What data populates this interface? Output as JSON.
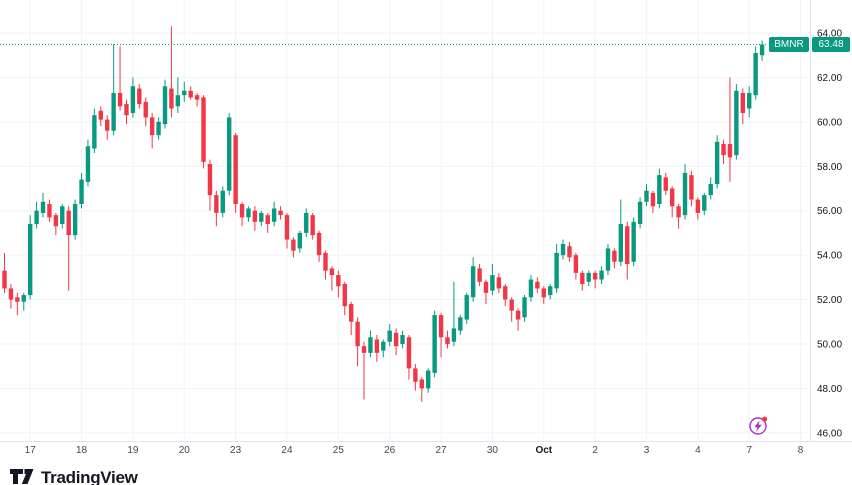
{
  "price_badge": {
    "symbol": "BMNR",
    "price": "63.48"
  },
  "watermark": {
    "text": "TradingView"
  },
  "chart_data": {
    "type": "candlestick",
    "symbol": "BMNR",
    "last_price": 63.48,
    "colors": {
      "up": "#089981",
      "down": "#f23645",
      "grid": "#f0f3fa",
      "axis_border": "#e0e3eb",
      "text": "#131722",
      "text_soft": "#434651",
      "price_line": "#089981",
      "event_icon": "#a832c8",
      "event_dot": "#f23645"
    },
    "y_axis": {
      "min": 46,
      "max": 64,
      "step": 2,
      "labels": [
        "64.00",
        "62.00",
        "60.00",
        "58.00",
        "56.00",
        "54.00",
        "52.00",
        "50.00",
        "48.00",
        "46.00"
      ]
    },
    "x_axis": {
      "labels": [
        {
          "text": "17",
          "i": 4
        },
        {
          "text": "18",
          "i": 12
        },
        {
          "text": "19",
          "i": 20
        },
        {
          "text": "20",
          "i": 28
        },
        {
          "text": "23",
          "i": 36
        },
        {
          "text": "24",
          "i": 44
        },
        {
          "text": "25",
          "i": 52
        },
        {
          "text": "26",
          "i": 60
        },
        {
          "text": "27",
          "i": 68
        },
        {
          "text": "30",
          "i": 76
        },
        {
          "text": "Oct",
          "i": 84,
          "bold": true
        },
        {
          "text": "2",
          "i": 92
        },
        {
          "text": "3",
          "i": 100
        },
        {
          "text": "4",
          "i": 108
        },
        {
          "text": "7",
          "i": 116
        },
        {
          "text": "8",
          "i": 124
        }
      ]
    },
    "candles": [
      [
        53.3,
        54.1,
        52.3,
        52.5
      ],
      [
        52.5,
        52.7,
        51.6,
        52.0
      ],
      [
        52.1,
        52.3,
        51.3,
        51.9
      ],
      [
        51.9,
        52.3,
        51.5,
        52.2
      ],
      [
        52.2,
        55.8,
        52.0,
        55.4
      ],
      [
        55.4,
        56.4,
        55.2,
        56.0
      ],
      [
        55.9,
        56.8,
        55.7,
        56.4
      ],
      [
        56.3,
        56.5,
        55.5,
        55.7
      ],
      [
        55.8,
        55.9,
        54.9,
        55.3
      ],
      [
        55.4,
        56.3,
        55.2,
        56.2
      ],
      [
        56.0,
        56.2,
        52.4,
        54.9
      ],
      [
        54.9,
        56.5,
        54.7,
        56.3
      ],
      [
        56.3,
        57.7,
        56.1,
        57.4
      ],
      [
        57.3,
        59.2,
        57.1,
        58.9
      ],
      [
        58.8,
        60.6,
        58.6,
        60.3
      ],
      [
        60.5,
        60.7,
        59.8,
        60.1
      ],
      [
        60.1,
        60.3,
        59.2,
        59.6
      ],
      [
        59.6,
        63.5,
        59.4,
        61.3
      ],
      [
        61.3,
        63.4,
        60.5,
        60.7
      ],
      [
        60.8,
        61.0,
        59.9,
        60.3
      ],
      [
        60.4,
        62.0,
        60.2,
        61.6
      ],
      [
        61.5,
        61.7,
        60.6,
        60.8
      ],
      [
        60.9,
        61.1,
        59.8,
        60.2
      ],
      [
        60.2,
        60.4,
        58.8,
        59.4
      ],
      [
        59.4,
        60.2,
        59.2,
        60.0
      ],
      [
        59.9,
        61.9,
        59.7,
        61.6
      ],
      [
        61.5,
        64.3,
        60.2,
        60.6
      ],
      [
        60.7,
        62.0,
        60.4,
        61.2
      ],
      [
        61.2,
        61.8,
        60.9,
        61.4
      ],
      [
        61.4,
        61.6,
        61.0,
        61.1
      ],
      [
        61.2,
        61.3,
        60.7,
        61.0
      ],
      [
        61.1,
        61.2,
        57.9,
        58.2
      ],
      [
        58.1,
        58.3,
        56.0,
        56.7
      ],
      [
        56.7,
        56.9,
        55.3,
        55.9
      ],
      [
        55.9,
        57.1,
        55.7,
        56.9
      ],
      [
        56.9,
        60.4,
        56.7,
        60.2
      ],
      [
        59.4,
        59.5,
        55.9,
        56.3
      ],
      [
        56.3,
        56.4,
        55.3,
        55.7
      ],
      [
        55.7,
        56.2,
        55.5,
        56.1
      ],
      [
        56.0,
        56.2,
        55.1,
        55.5
      ],
      [
        55.5,
        56.0,
        55.3,
        55.9
      ],
      [
        55.8,
        55.9,
        55.0,
        55.4
      ],
      [
        55.5,
        56.4,
        55.3,
        56.1
      ],
      [
        56.0,
        56.2,
        55.6,
        55.8
      ],
      [
        55.8,
        55.9,
        54.3,
        54.7
      ],
      [
        54.7,
        54.8,
        53.9,
        54.2
      ],
      [
        54.3,
        55.1,
        54.1,
        55.0
      ],
      [
        55.0,
        56.1,
        54.8,
        55.9
      ],
      [
        55.8,
        55.9,
        54.7,
        54.9
      ],
      [
        55.0,
        55.1,
        53.7,
        54.0
      ],
      [
        54.1,
        54.2,
        52.9,
        53.3
      ],
      [
        53.4,
        53.5,
        52.4,
        53.1
      ],
      [
        53.1,
        53.3,
        52.1,
        52.6
      ],
      [
        52.7,
        52.8,
        51.3,
        51.7
      ],
      [
        51.8,
        51.9,
        50.4,
        51.0
      ],
      [
        51.0,
        51.2,
        49.0,
        49.9
      ],
      [
        49.9,
        50.1,
        47.5,
        49.6
      ],
      [
        49.6,
        50.6,
        49.4,
        50.3
      ],
      [
        50.2,
        50.4,
        49.2,
        49.6
      ],
      [
        49.7,
        50.2,
        49.4,
        50.1
      ],
      [
        50.1,
        50.9,
        49.9,
        50.6
      ],
      [
        50.5,
        50.7,
        49.5,
        49.9
      ],
      [
        50.0,
        50.6,
        49.8,
        50.4
      ],
      [
        50.3,
        50.4,
        48.4,
        48.9
      ],
      [
        48.9,
        49.1,
        47.9,
        48.3
      ],
      [
        48.4,
        48.5,
        47.4,
        48.0
      ],
      [
        48.0,
        48.9,
        47.8,
        48.8
      ],
      [
        48.7,
        51.5,
        48.5,
        51.3
      ],
      [
        51.3,
        51.4,
        49.4,
        50.3
      ],
      [
        50.3,
        50.6,
        49.8,
        50.0
      ],
      [
        50.1,
        52.8,
        49.9,
        50.7
      ],
      [
        50.6,
        51.3,
        50.4,
        51.2
      ],
      [
        51.1,
        52.3,
        50.9,
        52.2
      ],
      [
        52.1,
        53.9,
        51.9,
        53.5
      ],
      [
        53.4,
        53.6,
        52.6,
        52.8
      ],
      [
        52.8,
        52.9,
        51.8,
        52.3
      ],
      [
        52.4,
        53.6,
        52.2,
        53.1
      ],
      [
        53.0,
        53.2,
        52.3,
        52.5
      ],
      [
        52.6,
        52.7,
        51.7,
        52.0
      ],
      [
        52.0,
        52.1,
        51.0,
        51.5
      ],
      [
        51.5,
        51.6,
        50.6,
        51.1
      ],
      [
        51.2,
        52.2,
        51.0,
        52.1
      ],
      [
        52.1,
        53.1,
        51.9,
        52.9
      ],
      [
        52.8,
        53.0,
        52.3,
        52.5
      ],
      [
        52.5,
        52.6,
        51.8,
        52.1
      ],
      [
        52.2,
        52.7,
        52.0,
        52.6
      ],
      [
        52.5,
        54.5,
        52.3,
        54.1
      ],
      [
        54.0,
        54.7,
        53.8,
        54.5
      ],
      [
        54.4,
        54.6,
        53.7,
        53.9
      ],
      [
        54.0,
        54.1,
        52.9,
        53.2
      ],
      [
        53.2,
        53.3,
        52.4,
        52.7
      ],
      [
        52.8,
        53.3,
        52.6,
        53.2
      ],
      [
        53.2,
        53.3,
        52.5,
        52.9
      ],
      [
        52.9,
        53.5,
        52.7,
        53.3
      ],
      [
        53.3,
        54.5,
        53.1,
        54.3
      ],
      [
        54.2,
        54.3,
        53.4,
        53.7
      ],
      [
        53.7,
        56.5,
        53.5,
        55.4
      ],
      [
        55.3,
        55.5,
        52.9,
        53.6
      ],
      [
        53.7,
        55.7,
        53.5,
        55.5
      ],
      [
        55.4,
        56.6,
        55.2,
        56.4
      ],
      [
        56.4,
        57.2,
        56.2,
        56.9
      ],
      [
        56.8,
        56.9,
        55.9,
        56.2
      ],
      [
        56.3,
        57.9,
        56.1,
        57.6
      ],
      [
        57.5,
        57.7,
        56.7,
        56.9
      ],
      [
        57.0,
        57.1,
        55.7,
        56.2
      ],
      [
        56.2,
        56.3,
        55.2,
        55.7
      ],
      [
        55.8,
        58.1,
        55.6,
        57.7
      ],
      [
        57.6,
        57.8,
        56.2,
        56.5
      ],
      [
        56.5,
        56.6,
        55.6,
        55.9
      ],
      [
        56.0,
        56.8,
        55.8,
        56.7
      ],
      [
        56.7,
        57.5,
        56.5,
        57.2
      ],
      [
        57.2,
        59.4,
        57.0,
        59.1
      ],
      [
        59.0,
        59.2,
        58.1,
        58.5
      ],
      [
        59.0,
        62.0,
        57.3,
        58.4
      ],
      [
        58.5,
        61.7,
        58.3,
        61.4
      ],
      [
        61.3,
        61.5,
        59.9,
        60.4
      ],
      [
        60.6,
        61.6,
        60.2,
        61.3
      ],
      [
        61.2,
        63.4,
        61.0,
        63.1
      ],
      [
        63.0,
        63.66,
        62.75,
        63.48
      ]
    ]
  }
}
